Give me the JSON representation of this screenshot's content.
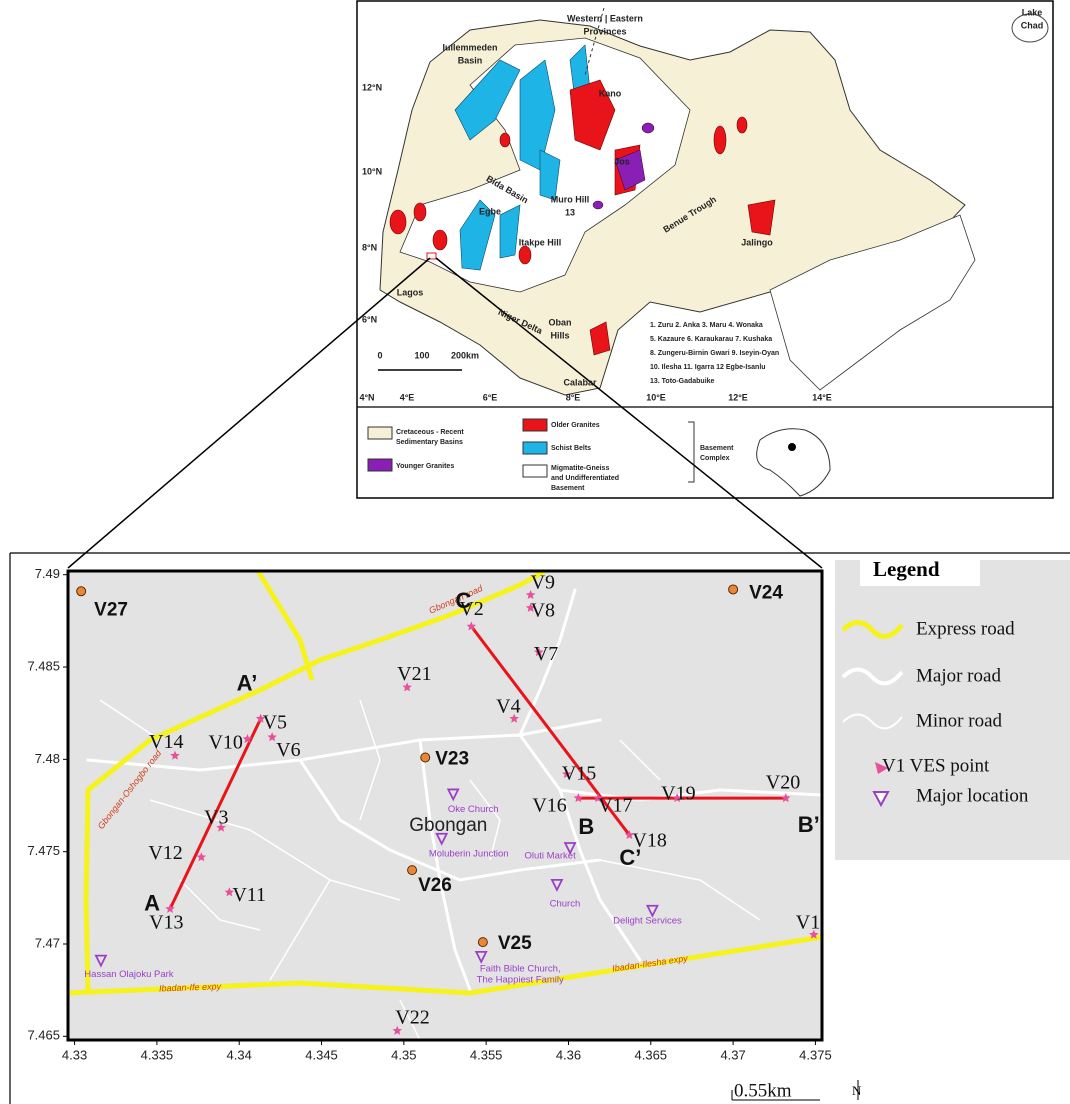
{
  "inset_map": {
    "labels": [
      [
        "Lake",
        "Chad"
      ],
      [
        "Western | Eastern",
        "Provinces"
      ],
      [
        "Iullemmeden",
        "Basin"
      ],
      [
        "Kano"
      ],
      [
        "Jos"
      ],
      [
        "Bida Basin"
      ],
      [
        "Muro Hill",
        "13"
      ],
      [
        "Egbe"
      ],
      [
        "Itakpe Hill"
      ],
      [
        "Benue Trough"
      ],
      [
        "Jalingo"
      ],
      [
        "Lagos"
      ],
      [
        "Niger Delta"
      ],
      [
        "Oban",
        "Hills"
      ],
      [
        "Calabar"
      ]
    ],
    "lat_labels": [
      "12°N",
      "10°N",
      "8°N",
      "6°N"
    ],
    "lon_labels": [
      "4°N",
      "4°E",
      "6°E",
      "8°E",
      "10°E",
      "12°E",
      "14°E"
    ],
    "scale_labels": [
      "0",
      "100",
      "200km"
    ],
    "sites": [
      "1. Zuru  2. Anka  3. Maru  4. Wonaka",
      "5. Kazaure  6. Karaukarau  7. Kushaka",
      "8. Zungeru-Birnin Gwari  9. Iseyin-Oyan",
      "10. Ilesha  11. Igarra  12 Egbe-Isanlu",
      "13. Toto-Gadabuike"
    ],
    "key": [
      {
        "lines": [
          "Cretaceous - Recent",
          "Sedimentary Basins"
        ],
        "color": "#f6f1d6"
      },
      {
        "lines": [
          "Younger Granites"
        ],
        "color": "#8a1fb5"
      },
      {
        "lines": [
          "Older Granites"
        ],
        "color": "#e8141a"
      },
      {
        "lines": [
          "Schist Belts"
        ],
        "color": "#1fb4e6"
      },
      {
        "lines": [
          "Migmatite-Gneiss",
          "and Undifferentiated",
          "Basement"
        ],
        "color": "#ffffff"
      }
    ],
    "basement_label": [
      "Basement",
      "Complex"
    ]
  },
  "study_map": {
    "xlim": [
      4.3296,
      4.3754
    ],
    "ylim": [
      7.4648,
      7.4902
    ],
    "xticks": [
      4.33,
      4.335,
      4.34,
      4.345,
      4.35,
      4.355,
      4.36,
      4.365,
      4.37,
      4.375
    ],
    "yticks": [
      7.465,
      7.47,
      7.475,
      7.48,
      7.485,
      7.49
    ],
    "town": {
      "name": "Gbongan",
      "lon": 4.3527,
      "lat": 7.4764
    },
    "points": [
      {
        "name": "V27",
        "lon": 4.3304,
        "lat": 7.4891,
        "marker": "circle"
      },
      {
        "name": "V24",
        "lon": 4.37,
        "lat": 7.4892,
        "marker": "circle"
      },
      {
        "name": "V2",
        "lon": 4.3541,
        "lat": 7.4872,
        "marker": "star"
      },
      {
        "name": "V9",
        "lon": 4.3577,
        "lat": 7.4889,
        "marker": "star"
      },
      {
        "name": "V8",
        "lon": 4.3577,
        "lat": 7.4882,
        "marker": "star"
      },
      {
        "name": "V7",
        "lon": 4.3582,
        "lat": 7.4858,
        "marker": "star"
      },
      {
        "name": "V21",
        "lon": 4.3502,
        "lat": 7.4839,
        "marker": "star"
      },
      {
        "name": "V4",
        "lon": 4.3567,
        "lat": 7.4822,
        "marker": "star"
      },
      {
        "name": "V5",
        "lon": 4.3413,
        "lat": 7.4822,
        "marker": "star"
      },
      {
        "name": "V6",
        "lon": 4.342,
        "lat": 7.4812,
        "marker": "star"
      },
      {
        "name": "V10",
        "lon": 4.3405,
        "lat": 7.4811,
        "marker": "star"
      },
      {
        "name": "V14",
        "lon": 4.3361,
        "lat": 7.4802,
        "marker": "star"
      },
      {
        "name": "V23",
        "lon": 4.3513,
        "lat": 7.4801,
        "marker": "circle"
      },
      {
        "name": "V15",
        "lon": 4.3599,
        "lat": 7.4792,
        "marker": "star"
      },
      {
        "name": "V16",
        "lon": 4.3606,
        "lat": 7.4779,
        "marker": "star"
      },
      {
        "name": "V17",
        "lon": 4.3618,
        "lat": 7.4779,
        "marker": "star"
      },
      {
        "name": "V19",
        "lon": 4.3666,
        "lat": 7.4779,
        "marker": "star"
      },
      {
        "name": "V20",
        "lon": 4.3732,
        "lat": 7.4779,
        "marker": "star"
      },
      {
        "name": "V18",
        "lon": 4.3637,
        "lat": 7.4759,
        "marker": "star"
      },
      {
        "name": "V3",
        "lon": 4.3389,
        "lat": 7.4763,
        "marker": "star"
      },
      {
        "name": "V12",
        "lon": 4.3377,
        "lat": 7.4747,
        "marker": "star"
      },
      {
        "name": "V11",
        "lon": 4.3394,
        "lat": 7.4728,
        "marker": "star"
      },
      {
        "name": "V13",
        "lon": 4.3358,
        "lat": 7.4719,
        "marker": "star"
      },
      {
        "name": "V26",
        "lon": 4.3505,
        "lat": 7.474,
        "marker": "circle"
      },
      {
        "name": "V25",
        "lon": 4.3548,
        "lat": 7.4701,
        "marker": "circle"
      },
      {
        "name": "V1",
        "lon": 4.3749,
        "lat": 7.4705,
        "marker": "star"
      },
      {
        "name": "V22",
        "lon": 4.3496,
        "lat": 7.4653,
        "marker": "star"
      }
    ],
    "sections": [
      {
        "start": "A",
        "end": "A’",
        "x": [
          4.3358,
          4.3413
        ],
        "y": [
          7.4719,
          7.4822
        ]
      },
      {
        "start": "C",
        "end": "C’",
        "x": [
          4.3541,
          4.3637
        ],
        "y": [
          7.4872,
          7.4759
        ]
      },
      {
        "start": "B",
        "end": "B’",
        "x": [
          4.3606,
          4.3732
        ],
        "y": [
          7.4779,
          7.4779
        ]
      }
    ],
    "section_color": "#e8141a",
    "places": [
      {
        "lines": [
          "Oke Church"
        ],
        "lon": 4.353,
        "lat": 7.4781
      },
      {
        "lines": [
          "Moluberin Junction"
        ],
        "lon": 4.3523,
        "lat": 7.4757
      },
      {
        "lines": [
          "Oluti Market"
        ],
        "lon": 4.3601,
        "lat": 7.4752
      },
      {
        "lines": [
          "Church"
        ],
        "lon": 4.3593,
        "lat": 7.4732
      },
      {
        "lines": [
          "Delight Services"
        ],
        "lon": 4.3651,
        "lat": 7.4718
      },
      {
        "lines": [
          "Faith Bible Church,",
          "The Happiest Family"
        ],
        "lon": 4.3547,
        "lat": 7.4693
      },
      {
        "lines": [
          "Hassan Olajoku Park"
        ],
        "lon": 4.3316,
        "lat": 7.4691
      }
    ],
    "road_labels": [
      "Ibadan-Ife expy",
      "Ibadan-Ilesha expy",
      "Gbongan road",
      "Gbongan-Oshogbo road"
    ],
    "legend": {
      "title": "Legend",
      "items": [
        "Express road",
        "Major road",
        "Minor road",
        "V1  VES point",
        "Major location"
      ]
    },
    "scale": "0.55km",
    "north": "N"
  }
}
